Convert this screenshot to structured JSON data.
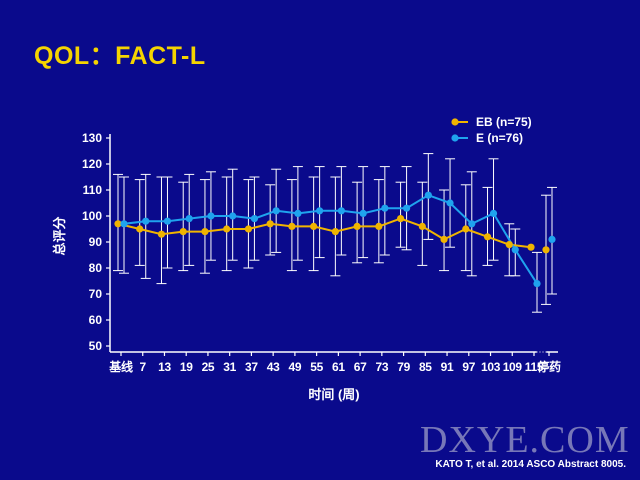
{
  "slide": {
    "title": "QOL：FACT-L",
    "citation": "KATO T, et al. 2014 ASCO Abstract 8005.",
    "watermark": "DXYE.COM"
  },
  "colors": {
    "background": "#0a0a8c",
    "title": "#f5d400",
    "EB": "#f0b400",
    "E": "#1fa3ee",
    "errorbar": "#ffffff"
  },
  "chart_data": {
    "type": "line",
    "xlabel": "时间 (周)",
    "ylabel": "总评分",
    "categories": [
      "基线",
      "7",
      "13",
      "19",
      "25",
      "31",
      "37",
      "43",
      "49",
      "55",
      "61",
      "67",
      "73",
      "79",
      "85",
      "91",
      "97",
      "103",
      "109",
      "115",
      "停药"
    ],
    "y_ticks": [
      50,
      60,
      70,
      80,
      90,
      100,
      110,
      120,
      130
    ],
    "ylim": [
      50,
      130
    ],
    "legend_position": "top-right",
    "axis_break_before": "停药",
    "series": [
      {
        "name": "EB (n=75)",
        "color": "#f0b400",
        "values": [
          97,
          95,
          93,
          94,
          94,
          95,
          95,
          97,
          96,
          96,
          94,
          96,
          96,
          99,
          96,
          91,
          95,
          92,
          89,
          88,
          87
        ],
        "error_low": [
          79,
          81,
          74,
          79,
          78,
          79,
          80,
          85,
          79,
          79,
          77,
          82,
          82,
          88,
          81,
          79,
          79,
          81,
          77,
          null,
          66
        ],
        "error_high": [
          116,
          114,
          115,
          113,
          114,
          115,
          114,
          112,
          114,
          115,
          115,
          113,
          114,
          113,
          113,
          110,
          112,
          111,
          97,
          null,
          108
        ]
      },
      {
        "name": "E (n=76)",
        "color": "#1fa3ee",
        "values": [
          97,
          98,
          98,
          99,
          100,
          100,
          99,
          102,
          101,
          102,
          102,
          101,
          103,
          103,
          108,
          105,
          97,
          101,
          87,
          74,
          91
        ],
        "error_low": [
          78,
          76,
          80,
          81,
          83,
          83,
          83,
          86,
          83,
          84,
          85,
          84,
          85,
          87,
          91,
          88,
          77,
          83,
          77,
          63,
          70
        ],
        "error_high": [
          115,
          116,
          115,
          116,
          117,
          118,
          115,
          118,
          119,
          119,
          119,
          119,
          119,
          119,
          124,
          122,
          117,
          122,
          95,
          86,
          111
        ]
      }
    ]
  }
}
